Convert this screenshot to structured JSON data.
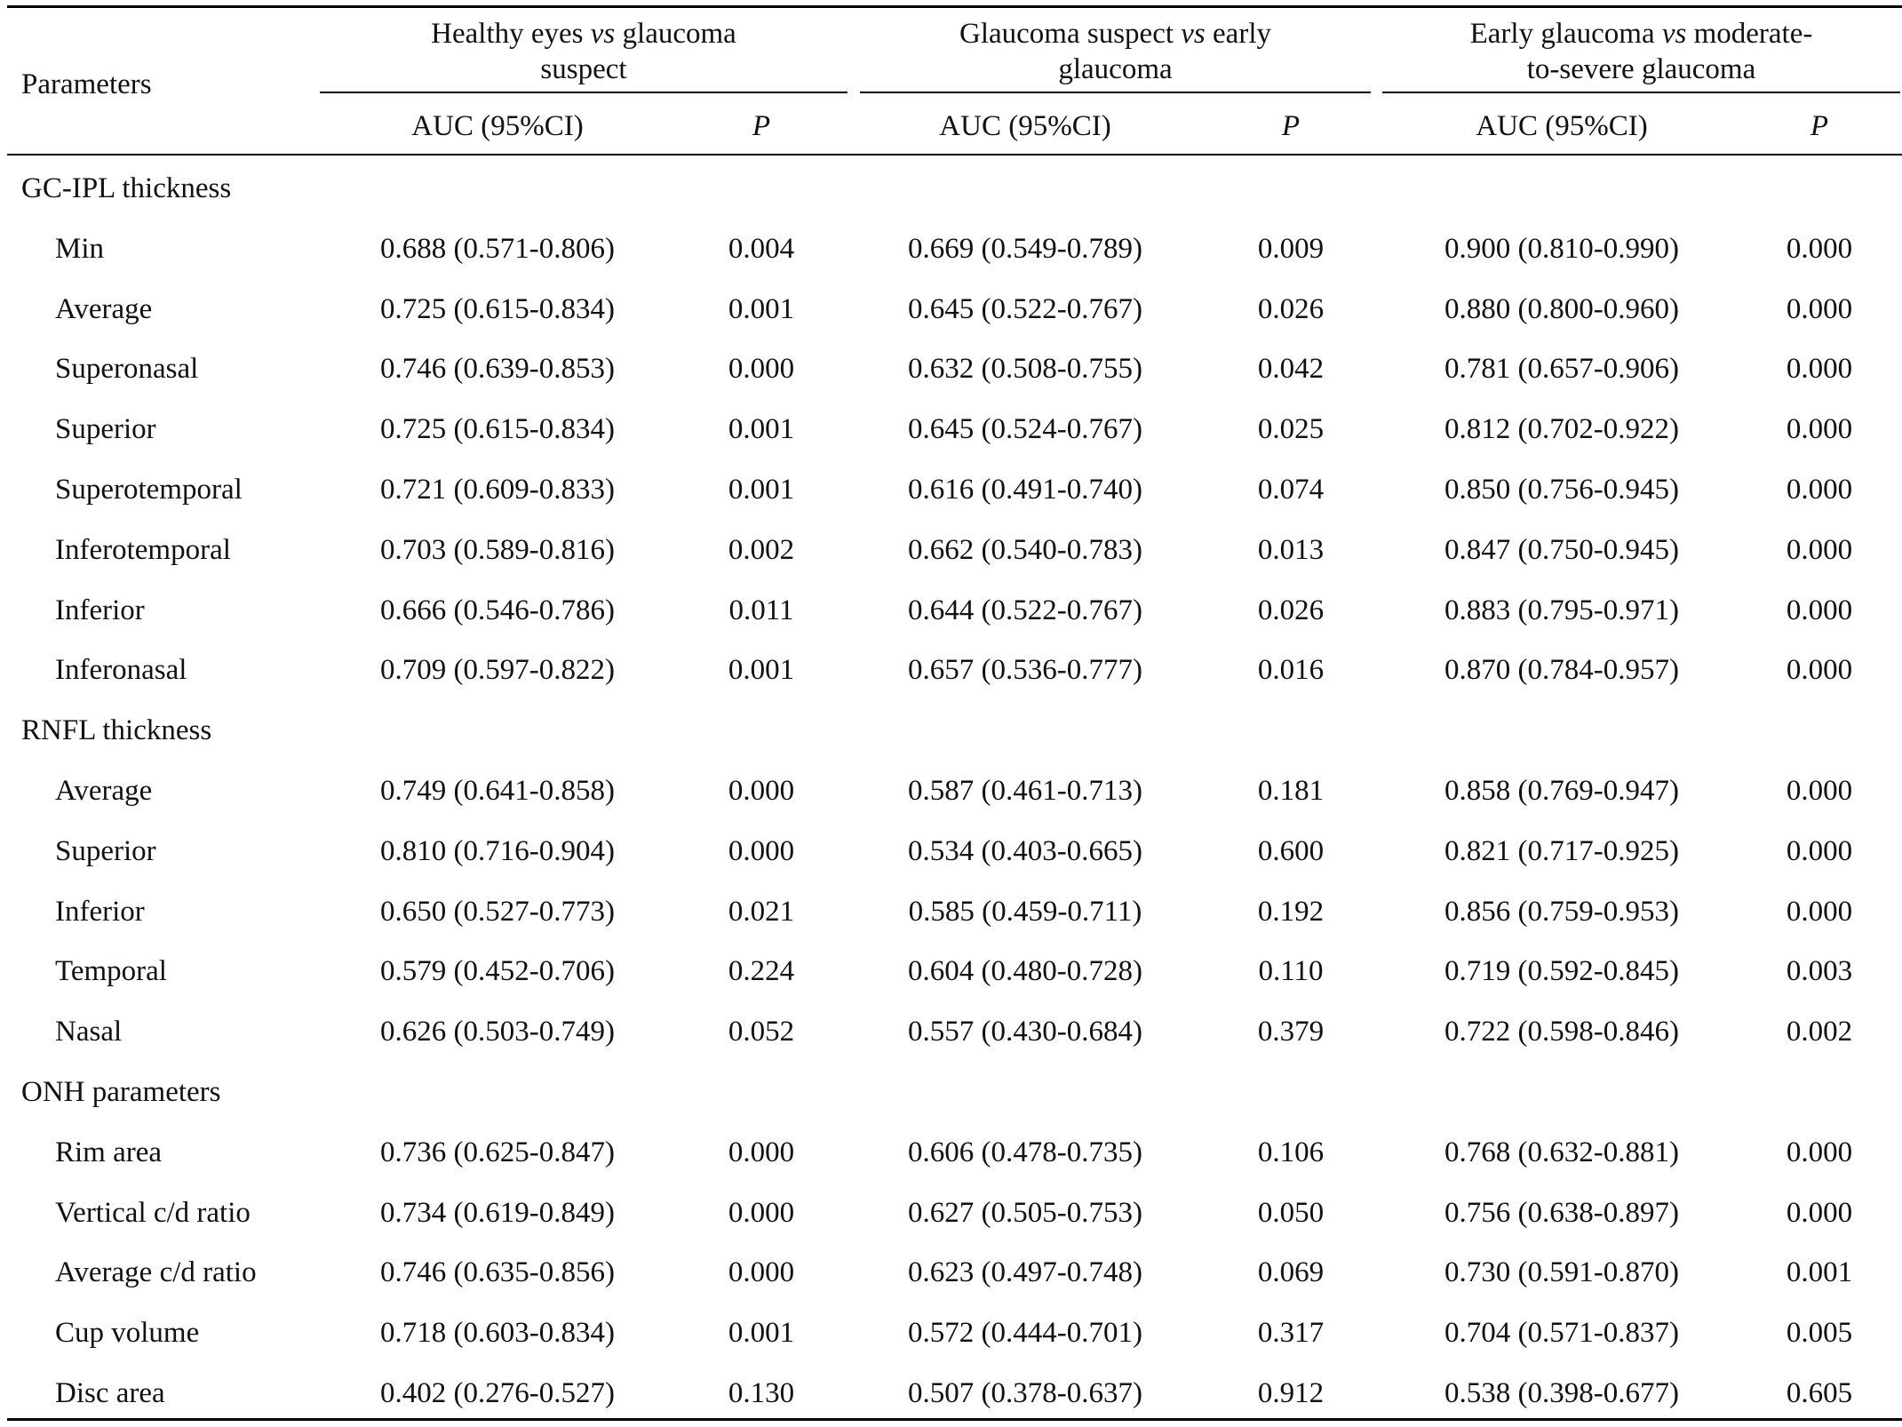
{
  "header": {
    "parameters_label": "Parameters",
    "groups": [
      {
        "pre": "Healthy eyes ",
        "vs": "vs",
        "post": " glaucoma",
        "line2": "suspect"
      },
      {
        "pre": "Glaucoma suspect ",
        "vs": "vs",
        "post": " early",
        "line2": "glaucoma"
      },
      {
        "pre": "Early glaucoma ",
        "vs": "vs",
        "post": " moderate-",
        "line2": "to-severe glaucoma"
      }
    ],
    "auc_label": "AUC (95%CI)",
    "p_label": "P"
  },
  "sections": [
    {
      "title": "GC-IPL thickness",
      "rows": [
        {
          "name": "Min",
          "values": [
            "0.688 (0.571-0.806)",
            "0.004",
            "0.669 (0.549-0.789)",
            "0.009",
            "0.900 (0.810-0.990)",
            "0.000"
          ]
        },
        {
          "name": "Average",
          "values": [
            "0.725 (0.615-0.834)",
            "0.001",
            "0.645 (0.522-0.767)",
            "0.026",
            "0.880 (0.800-0.960)",
            "0.000"
          ]
        },
        {
          "name": "Superonasal",
          "values": [
            "0.746 (0.639-0.853)",
            "0.000",
            "0.632 (0.508-0.755)",
            "0.042",
            "0.781 (0.657-0.906)",
            "0.000"
          ]
        },
        {
          "name": "Superior",
          "values": [
            "0.725 (0.615-0.834)",
            "0.001",
            "0.645 (0.524-0.767)",
            "0.025",
            "0.812 (0.702-0.922)",
            "0.000"
          ]
        },
        {
          "name": "Superotemporal",
          "values": [
            "0.721 (0.609-0.833)",
            "0.001",
            "0.616 (0.491-0.740)",
            "0.074",
            "0.850 (0.756-0.945)",
            "0.000"
          ]
        },
        {
          "name": "Inferotemporal",
          "values": [
            "0.703 (0.589-0.816)",
            "0.002",
            "0.662 (0.540-0.783)",
            "0.013",
            "0.847 (0.750-0.945)",
            "0.000"
          ]
        },
        {
          "name": "Inferior",
          "values": [
            "0.666 (0.546-0.786)",
            "0.011",
            "0.644 (0.522-0.767)",
            "0.026",
            "0.883 (0.795-0.971)",
            "0.000"
          ]
        },
        {
          "name": "Inferonasal",
          "values": [
            "0.709 (0.597-0.822)",
            "0.001",
            "0.657 (0.536-0.777)",
            "0.016",
            "0.870 (0.784-0.957)",
            "0.000"
          ]
        }
      ]
    },
    {
      "title": "RNFL thickness",
      "rows": [
        {
          "name": "Average",
          "values": [
            "0.749 (0.641-0.858)",
            "0.000",
            "0.587 (0.461-0.713)",
            "0.181",
            "0.858 (0.769-0.947)",
            "0.000"
          ]
        },
        {
          "name": "Superior",
          "values": [
            "0.810 (0.716-0.904)",
            "0.000",
            "0.534 (0.403-0.665)",
            "0.600",
            "0.821 (0.717-0.925)",
            "0.000"
          ]
        },
        {
          "name": "Inferior",
          "values": [
            "0.650 (0.527-0.773)",
            "0.021",
            "0.585 (0.459-0.711)",
            "0.192",
            "0.856 (0.759-0.953)",
            "0.000"
          ]
        },
        {
          "name": "Temporal",
          "values": [
            "0.579 (0.452-0.706)",
            "0.224",
            "0.604 (0.480-0.728)",
            "0.110",
            "0.719 (0.592-0.845)",
            "0.003"
          ]
        },
        {
          "name": "Nasal",
          "values": [
            "0.626 (0.503-0.749)",
            "0.052",
            "0.557 (0.430-0.684)",
            "0.379",
            "0.722 (0.598-0.846)",
            "0.002"
          ]
        }
      ]
    },
    {
      "title": "ONH parameters",
      "rows": [
        {
          "name": "Rim area",
          "values": [
            "0.736 (0.625-0.847)",
            "0.000",
            "0.606 (0.478-0.735)",
            "0.106",
            "0.768 (0.632-0.881)",
            "0.000"
          ]
        },
        {
          "name": "Vertical c/d ratio",
          "values": [
            "0.734 (0.619-0.849)",
            "0.000",
            "0.627 (0.505-0.753)",
            "0.050",
            "0.756 (0.638-0.897)",
            "0.000"
          ]
        },
        {
          "name": "Average c/d ratio",
          "values": [
            "0.746 (0.635-0.856)",
            "0.000",
            "0.623 (0.497-0.748)",
            "0.069",
            "0.730 (0.591-0.870)",
            "0.001"
          ]
        },
        {
          "name": "Cup volume",
          "values": [
            "0.718 (0.603-0.834)",
            "0.001",
            "0.572 (0.444-0.701)",
            "0.317",
            "0.704 (0.571-0.837)",
            "0.005"
          ]
        },
        {
          "name": "Disc area",
          "values": [
            "0.402 (0.276-0.527)",
            "0.130",
            "0.507 (0.378-0.637)",
            "0.912",
            "0.538 (0.398-0.677)",
            "0.605"
          ]
        }
      ]
    }
  ]
}
